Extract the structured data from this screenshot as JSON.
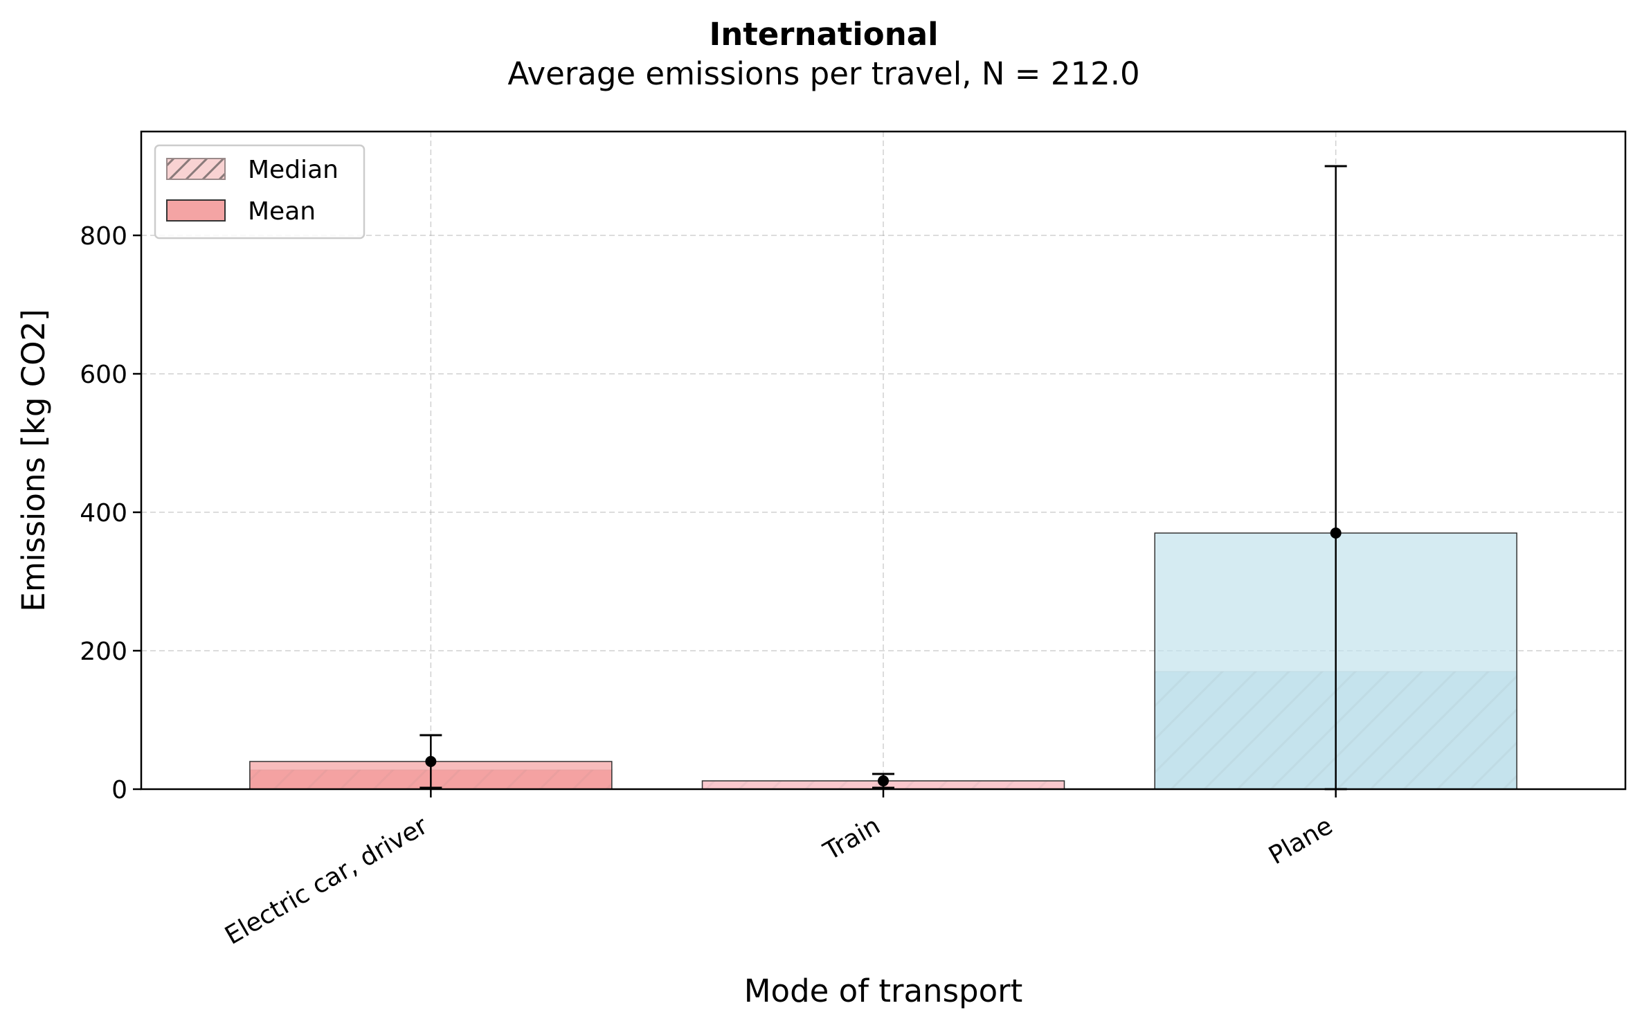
{
  "chart_data": {
    "type": "bar",
    "title": "International",
    "subtitle": "Average emissions per travel, N = 212.0",
    "xlabel": "Mode of transport",
    "ylabel": "Emissions [kg CO2]",
    "ylim": [
      0,
      950
    ],
    "yticks": [
      0,
      200,
      400,
      600,
      800
    ],
    "grid": true,
    "legend_position": "top-left",
    "legend": [
      {
        "label": "Median",
        "style": "hatched",
        "color": "#f8d2d2"
      },
      {
        "label": "Mean",
        "style": "solid",
        "color": "#f4a4a4"
      }
    ],
    "categories": [
      "Electric car, driver",
      "Train",
      "Plane"
    ],
    "colors": [
      "#f4a0a0",
      "#f9c6cc",
      "#c3e2ec"
    ],
    "series": [
      {
        "name": "Mean",
        "values": [
          40,
          12,
          370
        ]
      },
      {
        "name": "Median",
        "values": [
          28,
          12,
          170
        ]
      }
    ],
    "error_bars": [
      {
        "center": 40,
        "low": 2,
        "high": 78
      },
      {
        "center": 12,
        "low": 2,
        "high": 22
      },
      {
        "center": 370,
        "low": 0,
        "high": 900
      }
    ]
  }
}
